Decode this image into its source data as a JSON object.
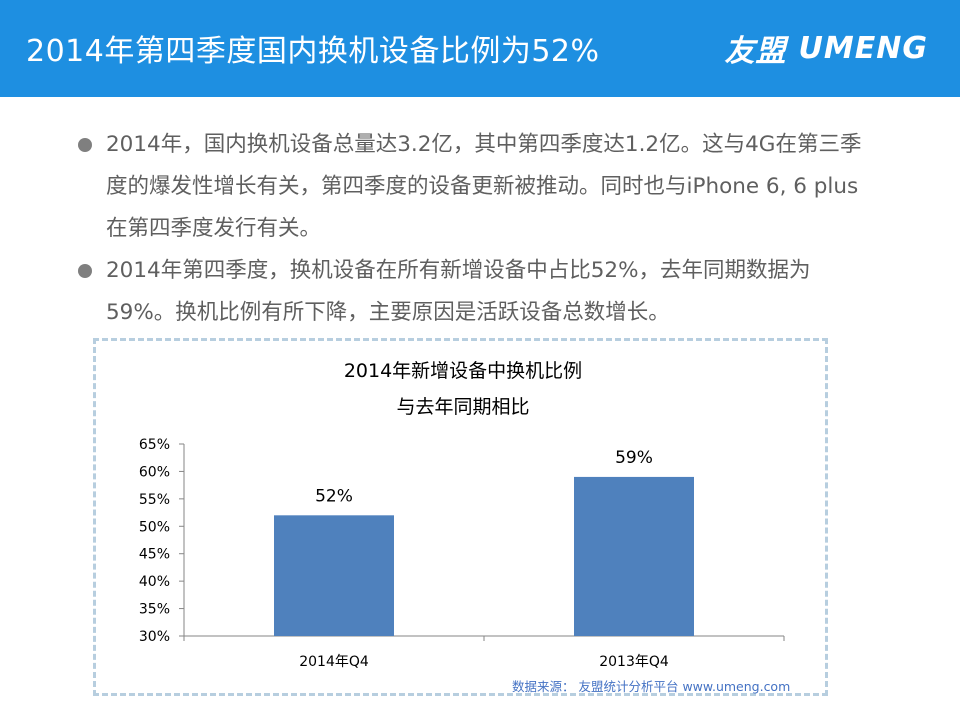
{
  "header": {
    "title": "2014年第四季度国内换机设备比例为52%",
    "logo_cn": "友盟",
    "logo_en": "UMENG",
    "bg_color": "#1e8fe1"
  },
  "bullets": [
    "2014年，国内换机设备总量达3.2亿，其中第四季度达1.2亿。这与4G在第三季度的爆发性增长有关，第四季度的设备更新被推动。同时也与iPhone 6, 6 plus 在第四季度发行有关。",
    "2014年第四季度，换机设备在所有新增设备中占比52%，去年同期数据为59%。换机比例有所下降，主要原因是活跃设备总数增长。"
  ],
  "chart_data": {
    "type": "bar",
    "title_line1": "2014年新增设备中换机比例",
    "title_line2": "与去年同期相比",
    "categories": [
      "2014年Q4",
      "2013年Q4"
    ],
    "values": [
      52,
      59
    ],
    "value_labels": [
      "52%",
      "59%"
    ],
    "ylim": [
      30,
      65
    ],
    "yticks": [
      30,
      35,
      40,
      45,
      50,
      55,
      60,
      65
    ],
    "ytick_labels": [
      "30%",
      "35%",
      "40%",
      "45%",
      "50%",
      "55%",
      "60%",
      "65%"
    ],
    "bar_color": "#4f81bd",
    "grid": false,
    "legend": "none"
  },
  "source": "数据来源： 友盟统计分析平台 www.umeng.com"
}
